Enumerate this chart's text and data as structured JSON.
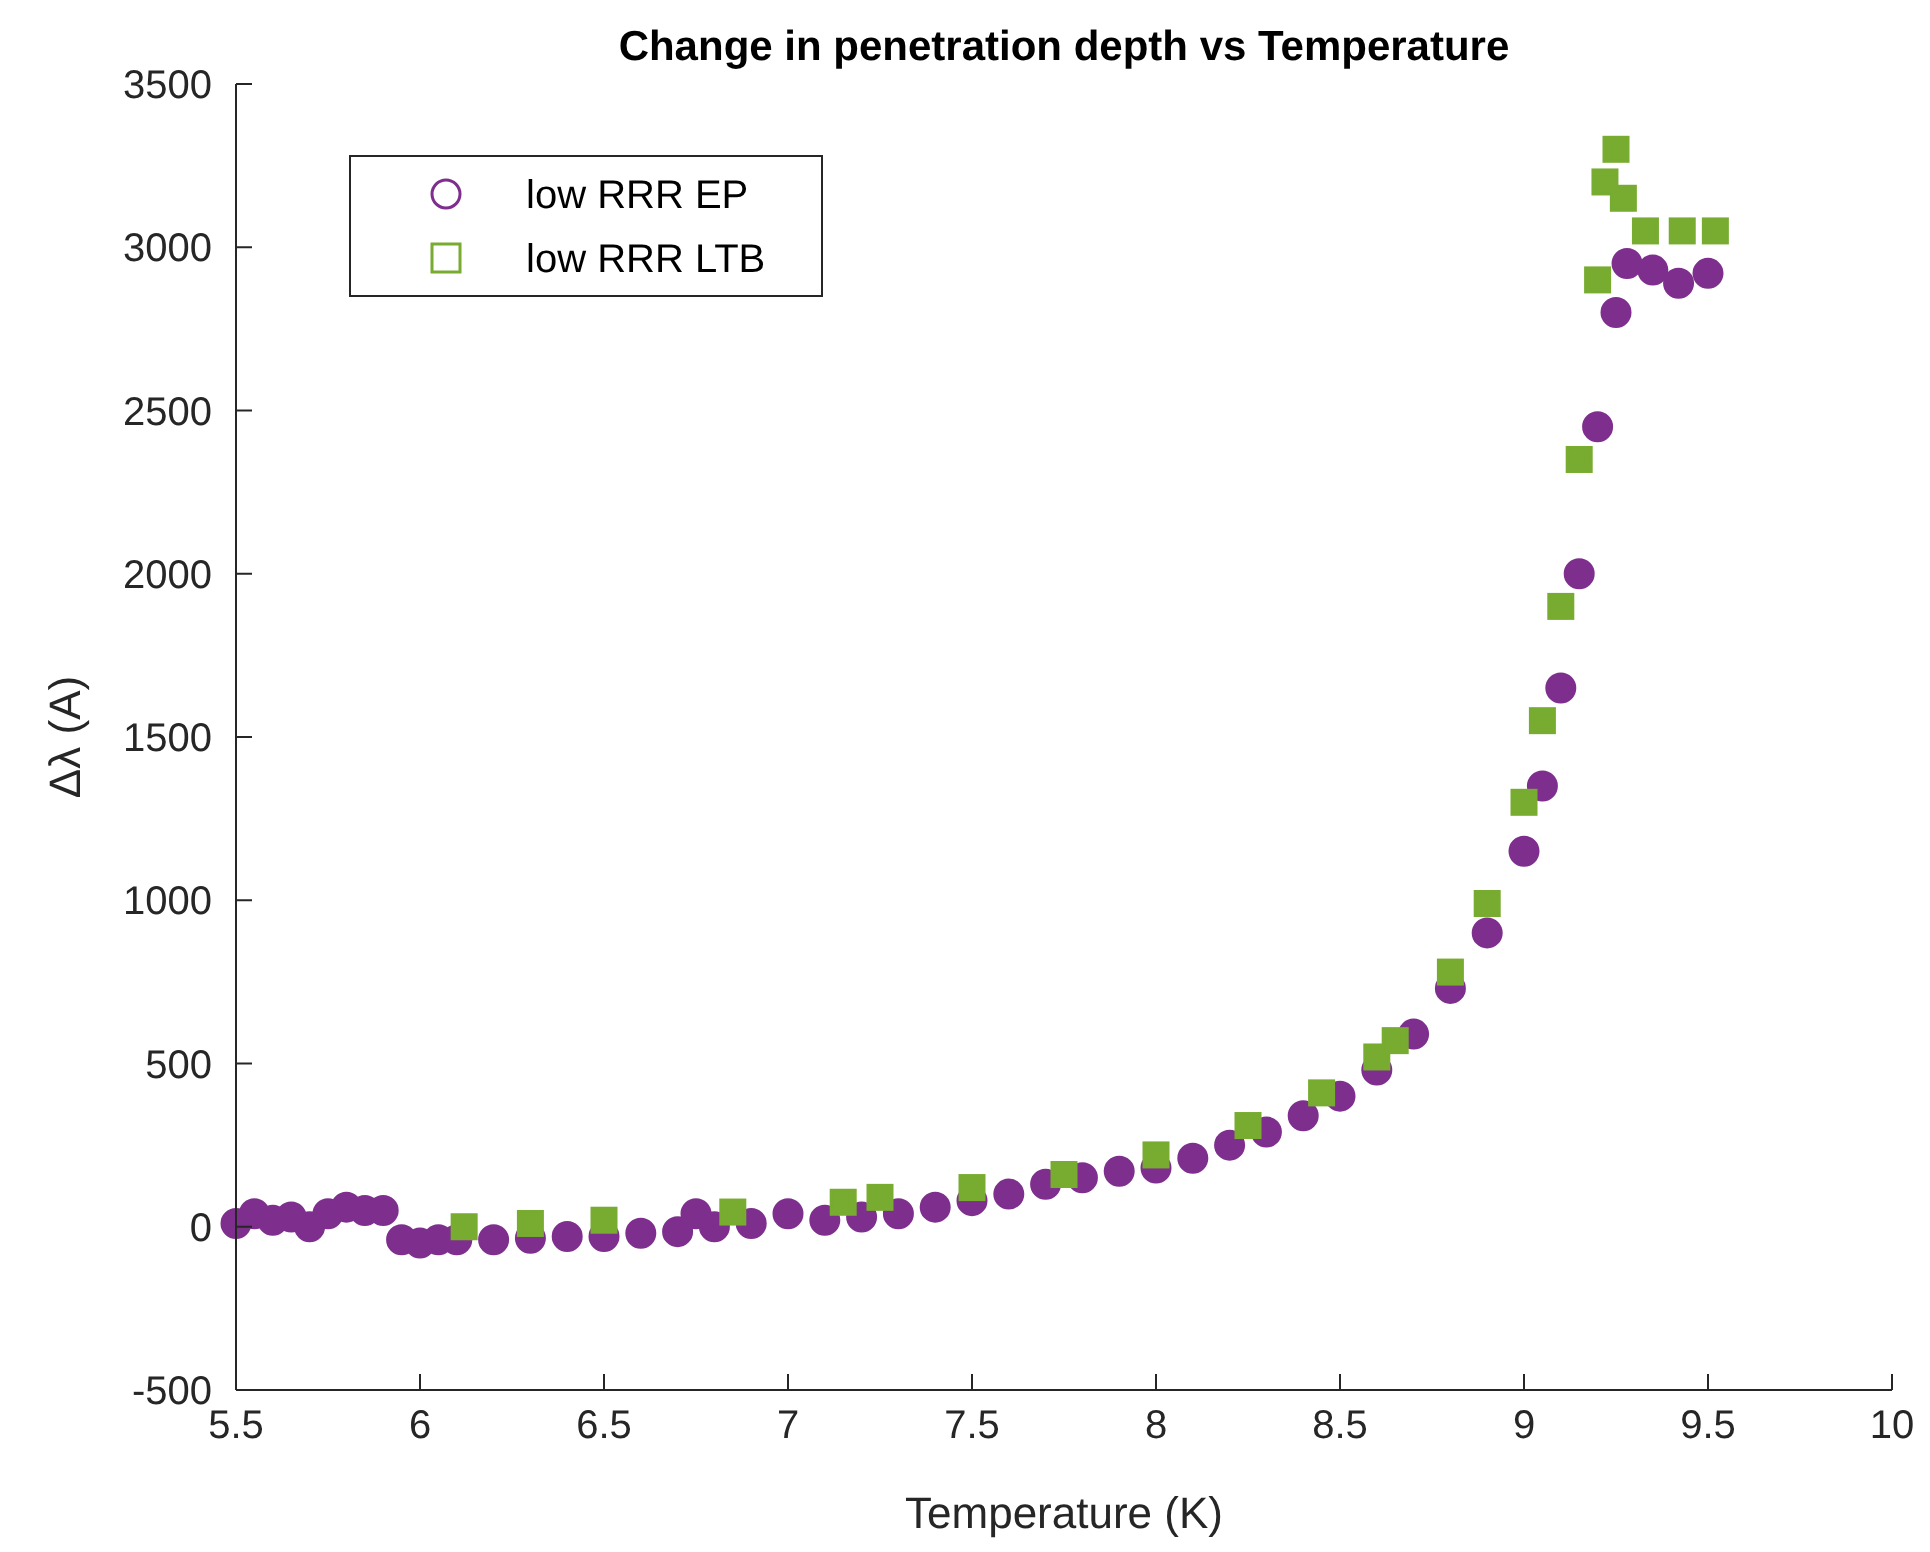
{
  "chart_data": {
    "type": "scatter",
    "title": "Change in penetration depth vs Temperature",
    "xlabel": "Temperature (K)",
    "ylabel": "Δλ (A)",
    "xlim": [
      5.5,
      10
    ],
    "xticks": [
      5.5,
      6,
      6.5,
      7,
      7.5,
      8,
      8.5,
      9,
      9.5,
      10
    ],
    "ylim": [
      -500,
      3500
    ],
    "yticks": [
      -500,
      0,
      500,
      1000,
      1500,
      2000,
      2500,
      3000,
      3500
    ],
    "grid": false,
    "legend": "top left",
    "series": [
      {
        "name": "low RRR EP",
        "color": "#7e2f8e",
        "marker": "circle",
        "x": [
          5.5,
          5.55,
          5.6,
          5.65,
          5.7,
          5.75,
          5.8,
          5.85,
          5.9,
          5.95,
          6.0,
          6.05,
          6.1,
          6.2,
          6.3,
          6.4,
          6.5,
          6.6,
          6.7,
          6.75,
          6.8,
          6.9,
          7.0,
          7.1,
          7.2,
          7.3,
          7.4,
          7.5,
          7.6,
          7.7,
          7.8,
          7.9,
          8.0,
          8.1,
          8.2,
          8.3,
          8.4,
          8.5,
          8.6,
          8.7,
          8.8,
          8.9,
          9.0,
          9.05,
          9.1,
          9.15,
          9.2,
          9.25,
          9.28,
          9.35,
          9.42,
          9.5
        ],
        "values": [
          10,
          40,
          20,
          30,
          0,
          40,
          60,
          50,
          50,
          -40,
          -50,
          -40,
          -40,
          -40,
          -35,
          -30,
          -30,
          -20,
          -15,
          40,
          0,
          10,
          40,
          20,
          30,
          40,
          60,
          80,
          100,
          130,
          150,
          170,
          180,
          210,
          250,
          290,
          340,
          400,
          480,
          590,
          730,
          900,
          1150,
          1350,
          1650,
          2000,
          2450,
          2800,
          2950,
          2930,
          2890,
          2920
        ]
      },
      {
        "name": "low RRR LTB",
        "color": "#77ac30",
        "marker": "square",
        "x": [
          6.12,
          6.3,
          6.5,
          6.85,
          7.15,
          7.25,
          7.5,
          7.75,
          8.0,
          8.25,
          8.45,
          8.6,
          8.65,
          8.8,
          8.9,
          9.0,
          9.05,
          9.1,
          9.15,
          9.2,
          9.22,
          9.25,
          9.27,
          9.33,
          9.43,
          9.52
        ],
        "values": [
          0,
          10,
          20,
          45,
          75,
          90,
          120,
          160,
          220,
          310,
          410,
          520,
          570,
          780,
          990,
          1300,
          1550,
          1900,
          2350,
          2900,
          3200,
          3300,
          3150,
          3050,
          3050,
          3050
        ]
      }
    ]
  }
}
